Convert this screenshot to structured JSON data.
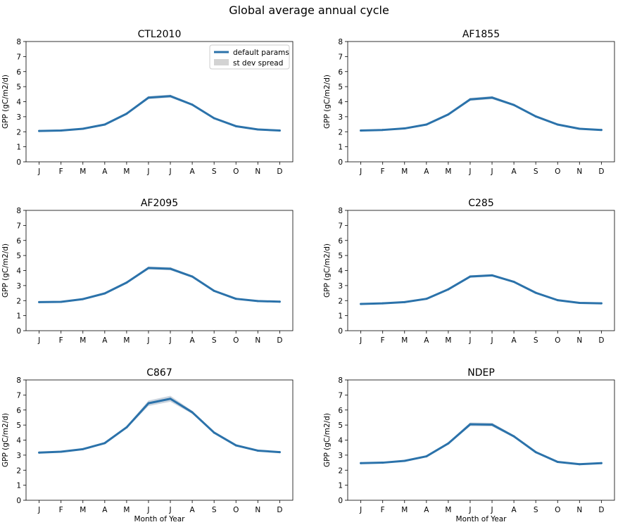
{
  "figure_title": "Global average annual cycle",
  "colors": {
    "line": "#2b72aa",
    "spread": "#cbd4de",
    "legend_spread": "#d3d3d3"
  },
  "legend": {
    "placement": "top-right",
    "panel": 0,
    "line_label": "default params",
    "spread_label": "st dev spread"
  },
  "chart_data": [
    {
      "type": "line",
      "title": "CTL2010",
      "xlabel": "",
      "ylabel": "GPP (gC/m2/d)",
      "categories": [
        "J",
        "F",
        "M",
        "A",
        "M",
        "J",
        "J",
        "A",
        "S",
        "O",
        "N",
        "D"
      ],
      "y_ticks": [
        "0",
        "1",
        "2",
        "3",
        "4",
        "5",
        "6",
        "7",
        "8"
      ],
      "ylim": [
        0,
        8
      ],
      "grid": false,
      "series": [
        {
          "name": "default params",
          "values": [
            2.05,
            2.08,
            2.2,
            2.48,
            3.2,
            4.27,
            4.37,
            3.8,
            2.9,
            2.37,
            2.15,
            2.08
          ],
          "spread": [
            0.03,
            0.03,
            0.03,
            0.04,
            0.05,
            0.1,
            0.1,
            0.06,
            0.04,
            0.03,
            0.03,
            0.03
          ]
        }
      ]
    },
    {
      "type": "line",
      "title": "AF1855",
      "xlabel": "",
      "ylabel": "GPP (gC/m2/d)",
      "categories": [
        "J",
        "F",
        "M",
        "A",
        "M",
        "J",
        "J",
        "A",
        "S",
        "O",
        "N",
        "D"
      ],
      "y_ticks": [
        "0",
        "1",
        "2",
        "3",
        "4",
        "5",
        "6",
        "7",
        "8"
      ],
      "ylim": [
        0,
        8
      ],
      "grid": false,
      "series": [
        {
          "name": "default params",
          "values": [
            2.08,
            2.12,
            2.22,
            2.48,
            3.15,
            4.15,
            4.27,
            3.78,
            3.02,
            2.48,
            2.2,
            2.12
          ],
          "spread": [
            0.03,
            0.03,
            0.03,
            0.04,
            0.05,
            0.1,
            0.1,
            0.06,
            0.04,
            0.03,
            0.03,
            0.03
          ]
        }
      ]
    },
    {
      "type": "line",
      "title": "AF2095",
      "xlabel": "",
      "ylabel": "GPP (gC/m2/d)",
      "categories": [
        "J",
        "F",
        "M",
        "A",
        "M",
        "J",
        "J",
        "A",
        "S",
        "O",
        "N",
        "D"
      ],
      "y_ticks": [
        "0",
        "1",
        "2",
        "3",
        "4",
        "5",
        "6",
        "7",
        "8"
      ],
      "ylim": [
        0,
        8
      ],
      "grid": false,
      "series": [
        {
          "name": "default params",
          "values": [
            1.9,
            1.92,
            2.1,
            2.48,
            3.2,
            4.17,
            4.12,
            3.6,
            2.65,
            2.12,
            1.97,
            1.93
          ],
          "spread": [
            0.03,
            0.03,
            0.03,
            0.04,
            0.05,
            0.1,
            0.1,
            0.06,
            0.04,
            0.03,
            0.03,
            0.03
          ]
        }
      ]
    },
    {
      "type": "line",
      "title": "C285",
      "xlabel": "",
      "ylabel": "GPP (gC/m2/d)",
      "categories": [
        "J",
        "F",
        "M",
        "A",
        "M",
        "J",
        "J",
        "A",
        "S",
        "O",
        "N",
        "D"
      ],
      "y_ticks": [
        "0",
        "1",
        "2",
        "3",
        "4",
        "5",
        "6",
        "7",
        "8"
      ],
      "ylim": [
        0,
        8
      ],
      "grid": false,
      "series": [
        {
          "name": "default params",
          "values": [
            1.78,
            1.82,
            1.9,
            2.12,
            2.75,
            3.6,
            3.68,
            3.25,
            2.52,
            2.03,
            1.85,
            1.82
          ],
          "spread": [
            0.03,
            0.03,
            0.03,
            0.04,
            0.05,
            0.08,
            0.08,
            0.05,
            0.04,
            0.03,
            0.03,
            0.03
          ]
        }
      ]
    },
    {
      "type": "line",
      "title": "C867",
      "xlabel": "Month of Year",
      "ylabel": "GPP (gC/m2/d)",
      "categories": [
        "J",
        "F",
        "M",
        "A",
        "M",
        "J",
        "J",
        "A",
        "S",
        "O",
        "N",
        "D"
      ],
      "y_ticks": [
        "0",
        "1",
        "2",
        "3",
        "4",
        "5",
        "6",
        "7",
        "8"
      ],
      "ylim": [
        0,
        8
      ],
      "grid": false,
      "series": [
        {
          "name": "default params",
          "values": [
            3.17,
            3.23,
            3.4,
            3.8,
            4.85,
            6.45,
            6.75,
            5.85,
            4.5,
            3.65,
            3.3,
            3.2
          ],
          "spread": [
            0.04,
            0.04,
            0.04,
            0.05,
            0.08,
            0.18,
            0.2,
            0.1,
            0.06,
            0.04,
            0.04,
            0.04
          ]
        }
      ]
    },
    {
      "type": "line",
      "title": "NDEP",
      "xlabel": "Month of Year",
      "ylabel": "GPP (gC/m2/d)",
      "categories": [
        "J",
        "F",
        "M",
        "A",
        "M",
        "J",
        "J",
        "A",
        "S",
        "O",
        "N",
        "D"
      ],
      "y_ticks": [
        "0",
        "1",
        "2",
        "3",
        "4",
        "5",
        "6",
        "7",
        "8"
      ],
      "ylim": [
        0,
        8
      ],
      "grid": false,
      "series": [
        {
          "name": "default params",
          "values": [
            2.47,
            2.5,
            2.62,
            2.92,
            3.78,
            5.05,
            5.03,
            4.25,
            3.2,
            2.55,
            2.4,
            2.47
          ],
          "spread": [
            0.03,
            0.03,
            0.03,
            0.04,
            0.06,
            0.12,
            0.12,
            0.08,
            0.05,
            0.03,
            0.03,
            0.03
          ]
        }
      ]
    }
  ]
}
